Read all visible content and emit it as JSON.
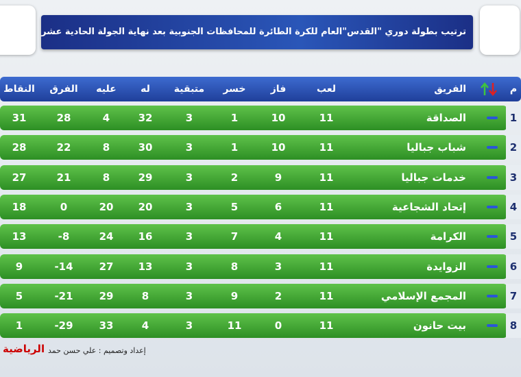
{
  "header": {
    "title": "ترتيب بطولة دوري \"القدس\"العام للكرة الطائرة للمحافظات الجنوبية بعد نهاية الجولة الحادية عشر"
  },
  "table": {
    "columns": [
      "م",
      "الفريق",
      "لعب",
      "فاز",
      "خسر",
      "متبقية",
      "له",
      "عليه",
      "الفرق",
      "النقاط"
    ],
    "rows": [
      [
        1,
        "الصداقة",
        11,
        10,
        1,
        3,
        32,
        4,
        28,
        31
      ],
      [
        2,
        "شباب جباليا",
        11,
        10,
        1,
        3,
        30,
        8,
        22,
        28
      ],
      [
        3,
        "خدمات جباليا",
        11,
        9,
        2,
        3,
        29,
        8,
        21,
        27
      ],
      [
        4,
        "إتحاد الشجاعية",
        11,
        6,
        5,
        3,
        20,
        20,
        0,
        18
      ],
      [
        5,
        "الكرامة",
        11,
        4,
        7,
        3,
        16,
        24,
        -8,
        13
      ],
      [
        6,
        "الزوايدة",
        11,
        3,
        8,
        3,
        13,
        27,
        -14,
        9
      ],
      [
        7,
        "المجمع الإسلامي",
        11,
        2,
        9,
        3,
        8,
        29,
        -21,
        5
      ],
      [
        8,
        "بيت حانون",
        11,
        0,
        11,
        3,
        4,
        33,
        -29,
        1
      ]
    ]
  },
  "footer": {
    "credit": "إعداد وتصميم : علي حسن حمد",
    "brand": "الرياضية"
  }
}
